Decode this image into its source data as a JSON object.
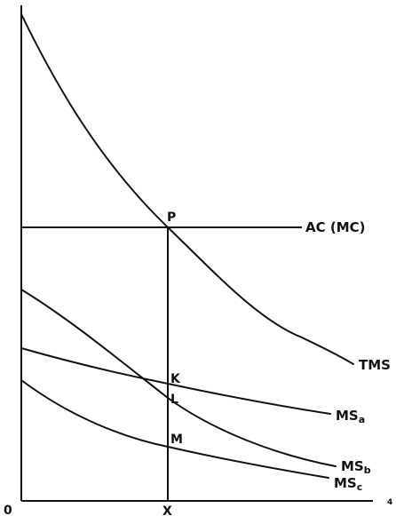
{
  "diagram": {
    "origin_label": "0",
    "x_axis_label": "X",
    "point_labels": {
      "P": "P",
      "K": "K",
      "L": "L",
      "M": "M"
    },
    "curve_labels": {
      "ac": "AC (MC)",
      "tms": "TMS",
      "ms_a": {
        "base": "MS",
        "sub": "a"
      },
      "ms_b": {
        "base": "MS",
        "sub": "b"
      },
      "ms_c": {
        "base": "MS",
        "sub": "c"
      }
    },
    "corner_mark": "4"
  }
}
